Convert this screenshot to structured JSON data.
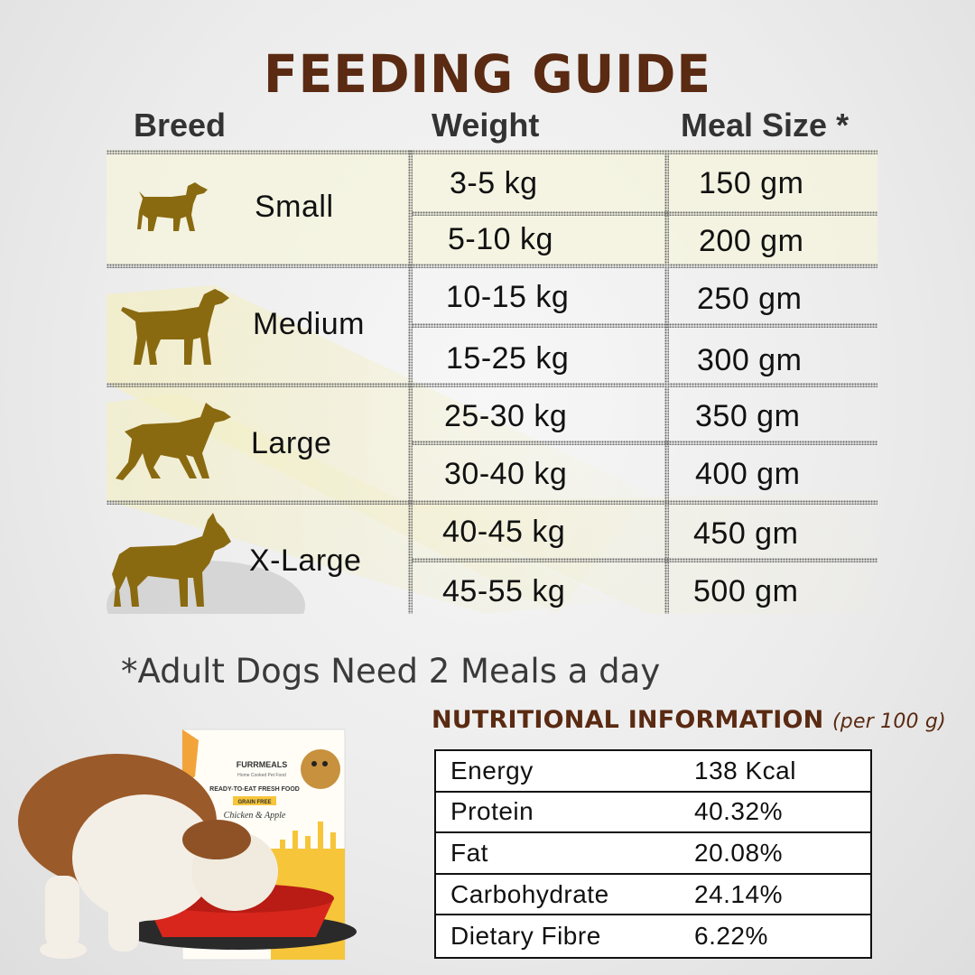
{
  "title": "FEEDING GUIDE",
  "headers": {
    "breed": "Breed",
    "weight": "Weight",
    "meal": "Meal Size *"
  },
  "breeds": [
    {
      "name": "Small",
      "rows": [
        {
          "weight": "3-5 kg",
          "meal": "150 gm"
        },
        {
          "weight": "5-10 kg",
          "meal": "200 gm"
        }
      ]
    },
    {
      "name": "Medium",
      "rows": [
        {
          "weight": "10-15 kg",
          "meal": "250 gm"
        },
        {
          "weight": "15-25 kg",
          "meal": "300 gm"
        }
      ]
    },
    {
      "name": "Large",
      "rows": [
        {
          "weight": "25-30 kg",
          "meal": "350 gm"
        },
        {
          "weight": "30-40 kg",
          "meal": "400 gm"
        }
      ]
    },
    {
      "name": "X-Large",
      "rows": [
        {
          "weight": "40-45 kg",
          "meal": "450 gm"
        },
        {
          "weight": "45-55 kg",
          "meal": "500 gm"
        }
      ]
    }
  ],
  "note": "*Adult Dogs Need 2 Meals a day",
  "nutrition": {
    "title": "NUTRITIONAL INFORMATION",
    "subtitle": "(per 100 g)",
    "rows": [
      {
        "name": "Energy",
        "value": "138 Kcal"
      },
      {
        "name": "Protein",
        "value": "40.32%"
      },
      {
        "name": "Fat",
        "value": "20.08%"
      },
      {
        "name": "Carbohydrate",
        "value": "24.14%"
      },
      {
        "name": "Dietary Fibre",
        "value": "6.22%"
      }
    ]
  },
  "product": {
    "brand": "FURRMEALS",
    "tagline": "Home Cooked Pet Food",
    "line1": "READY-TO-EAT FRESH FOOD",
    "line2": "GRAIN FREE",
    "flavor": "Chicken & Apple"
  },
  "colors": {
    "title": "#5a2a12",
    "dog_silhouette": "#8a6a10",
    "highlight": "#f3efc4"
  }
}
